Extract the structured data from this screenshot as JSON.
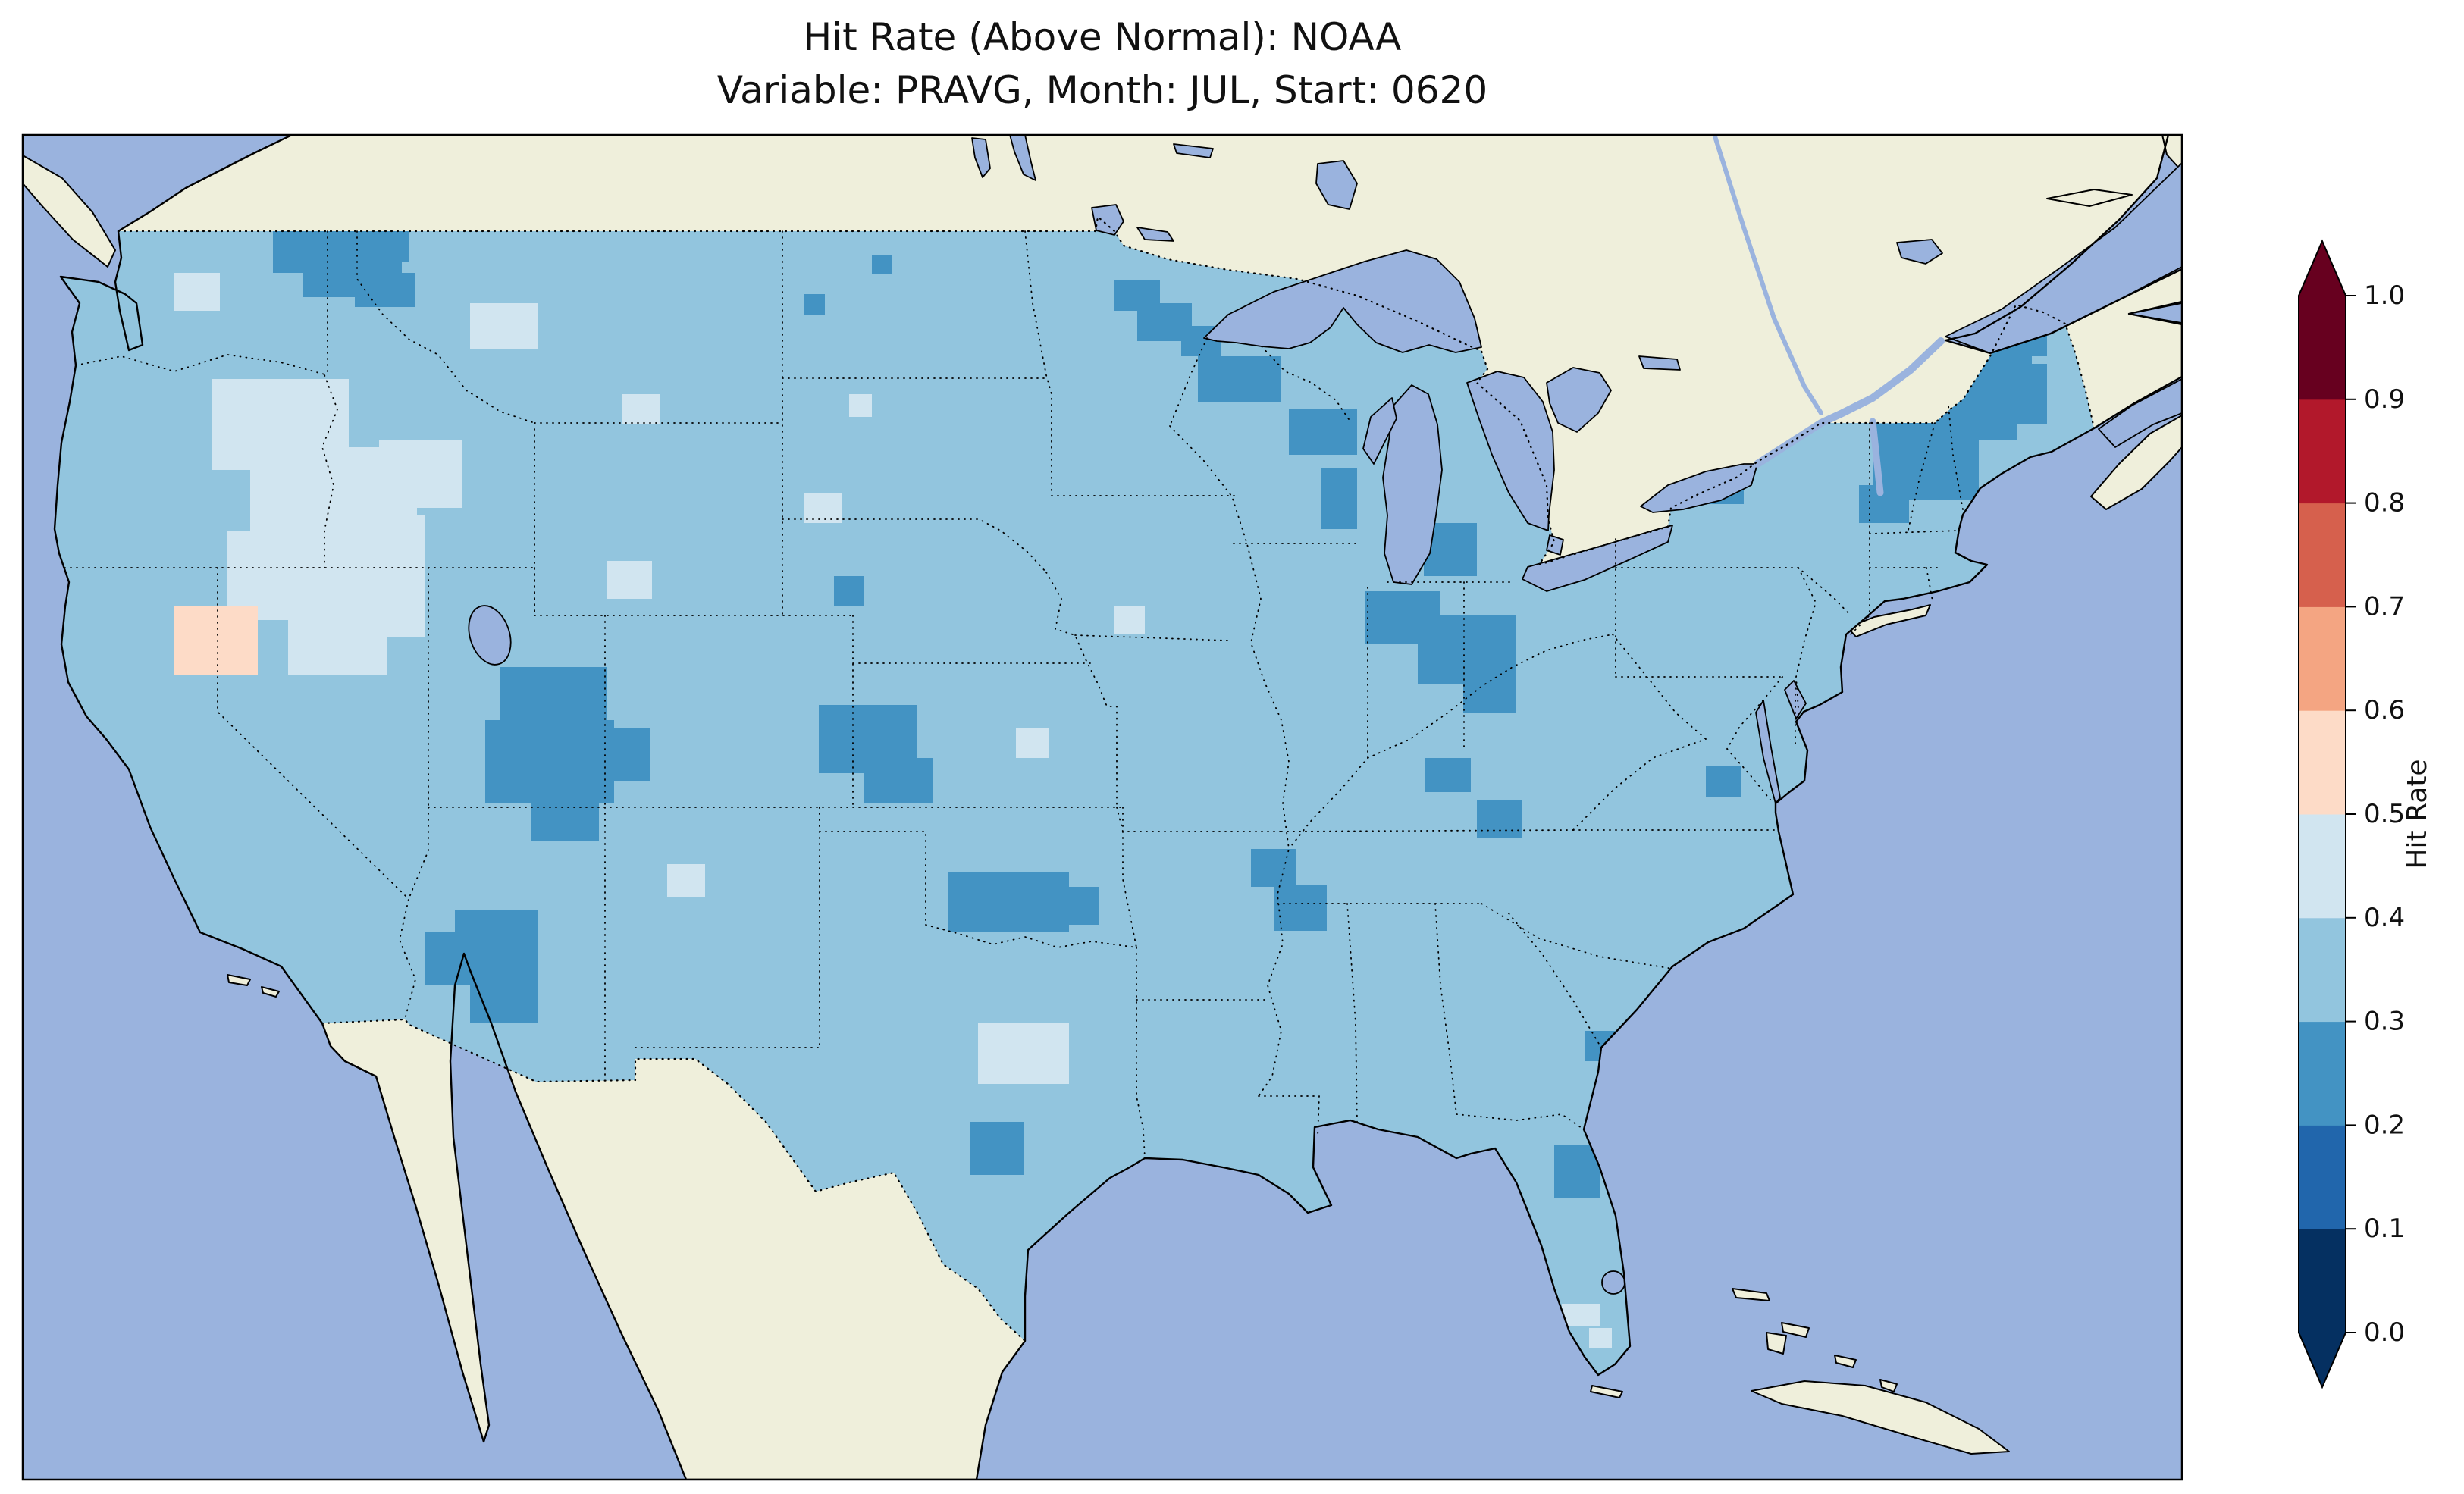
{
  "chart_data": {
    "type": "heatmap",
    "title": "Hit Rate (Above Normal): NOAA",
    "subtitle": "Variable: PRAVG, Month: JUL, Start: 0620",
    "metric": "Hit Rate (Above Normal)",
    "source": "NOAA",
    "variable": "PRAVG",
    "month": "JUL",
    "start": "0620",
    "region": "Continental United States",
    "colorbar": {
      "label": "Hit Rate",
      "orientation": "vertical",
      "extend": "both",
      "ticks": [
        "0.0",
        "0.1",
        "0.2",
        "0.3",
        "0.4",
        "0.5",
        "0.6",
        "0.7",
        "0.8",
        "0.9",
        "1.0"
      ],
      "bin_edges": [
        0.0,
        0.1,
        0.2,
        0.3,
        0.4,
        0.5,
        0.6,
        0.7,
        0.8,
        0.9,
        1.0
      ],
      "bin_colors": [
        "#053061",
        "#2166ac",
        "#4393c3",
        "#92c5de",
        "#d1e5f0",
        "#fddbc7",
        "#f4a582",
        "#d6604d",
        "#b2182b",
        "#67001f"
      ],
      "under_color": "#053061",
      "over_color": "#67001f"
    },
    "map_colors": {
      "ocean": "#9ab3de",
      "land": "#efefdb",
      "water": "#9ab3de",
      "base": "#92c5de",
      "coastline": "#000000"
    },
    "base_value": 0.35,
    "base_bin": "0.3-0.4",
    "summary": "Most of the continental US shows hit rates in the 0.3-0.4 bin; scattered clusters of 0.2-0.3 (darker blue) appear in the interior Northwest, New England, the Great Lakes region, Utah/Colorado, Arizona, the central Plains and the Southeast; pale 0.4-0.5 areas cover parts of the Great Basin and northern Rockies; a small 0.5-0.6 (pink) patch sits near the California/Nevada border.",
    "cells": [
      [
        360,
        305,
        90,
        55,
        0.25
      ],
      [
        400,
        332,
        130,
        60,
        0.25
      ],
      [
        440,
        300,
        100,
        45,
        0.25
      ],
      [
        468,
        360,
        80,
        45,
        0.25
      ],
      [
        1060,
        388,
        28,
        28,
        0.25
      ],
      [
        1150,
        336,
        26,
        26,
        0.25
      ],
      [
        1470,
        370,
        60,
        40,
        0.25
      ],
      [
        1500,
        400,
        72,
        50,
        0.25
      ],
      [
        1558,
        430,
        52,
        40,
        0.25
      ],
      [
        1580,
        470,
        110,
        60,
        0.25
      ],
      [
        1700,
        540,
        90,
        60,
        0.25
      ],
      [
        1742,
        618,
        48,
        80,
        0.25
      ],
      [
        1878,
        690,
        70,
        70,
        0.25
      ],
      [
        1800,
        780,
        100,
        70,
        0.25
      ],
      [
        1870,
        812,
        130,
        90,
        0.25
      ],
      [
        1930,
        880,
        70,
        60,
        0.25
      ],
      [
        2560,
        410,
        120,
        90,
        0.25
      ],
      [
        2500,
        470,
        160,
        110,
        0.25
      ],
      [
        2470,
        560,
        140,
        100,
        0.25
      ],
      [
        2620,
        480,
        80,
        80,
        0.25
      ],
      [
        2640,
        420,
        60,
        50,
        0.25
      ],
      [
        2452,
        640,
        66,
        50,
        0.25
      ],
      [
        2250,
        620,
        50,
        45,
        0.25
      ],
      [
        660,
        880,
        140,
        80,
        0.25
      ],
      [
        640,
        950,
        170,
        110,
        0.25
      ],
      [
        700,
        1050,
        90,
        60,
        0.25
      ],
      [
        798,
        960,
        60,
        70,
        0.25
      ],
      [
        600,
        1200,
        110,
        90,
        0.25
      ],
      [
        620,
        1280,
        90,
        70,
        0.25
      ],
      [
        560,
        1230,
        60,
        70,
        0.25
      ],
      [
        1080,
        930,
        130,
        90,
        0.25
      ],
      [
        1140,
        1000,
        90,
        60,
        0.25
      ],
      [
        1100,
        760,
        40,
        40,
        0.25
      ],
      [
        1250,
        1150,
        160,
        80,
        0.25
      ],
      [
        1380,
        1170,
        70,
        50,
        0.25
      ],
      [
        1650,
        1120,
        60,
        50,
        0.25
      ],
      [
        1680,
        1168,
        70,
        60,
        0.25
      ],
      [
        1880,
        1000,
        60,
        45,
        0.25
      ],
      [
        1948,
        1056,
        60,
        50,
        0.25
      ],
      [
        1280,
        1480,
        70,
        70,
        0.25
      ],
      [
        2050,
        1510,
        60,
        70,
        0.25
      ],
      [
        2090,
        1360,
        40,
        40,
        0.25
      ],
      [
        2250,
        1010,
        46,
        42,
        0.25
      ],
      [
        230,
        360,
        60,
        50,
        0.45
      ],
      [
        280,
        500,
        180,
        120,
        0.45
      ],
      [
        330,
        590,
        220,
        140,
        0.45
      ],
      [
        300,
        700,
        170,
        110,
        0.45
      ],
      [
        420,
        680,
        140,
        120,
        0.45
      ],
      [
        380,
        800,
        130,
        90,
        0.45
      ],
      [
        500,
        580,
        110,
        90,
        0.45
      ],
      [
        470,
        760,
        90,
        80,
        0.45
      ],
      [
        300,
        758,
        80,
        60,
        0.45
      ],
      [
        620,
        400,
        90,
        60,
        0.45
      ],
      [
        820,
        520,
        50,
        40,
        0.45
      ],
      [
        800,
        740,
        60,
        50,
        0.45
      ],
      [
        1060,
        650,
        50,
        40,
        0.45
      ],
      [
        1120,
        520,
        30,
        30,
        0.45
      ],
      [
        1290,
        1350,
        120,
        80,
        0.45
      ],
      [
        1340,
        960,
        44,
        40,
        0.45
      ],
      [
        1470,
        800,
        40,
        36,
        0.45
      ],
      [
        880,
        1140,
        50,
        44,
        0.45
      ],
      [
        2060,
        1720,
        50,
        30,
        0.45
      ],
      [
        2096,
        1752,
        30,
        26,
        0.45
      ],
      [
        230,
        800,
        110,
        90,
        0.55
      ]
    ]
  }
}
